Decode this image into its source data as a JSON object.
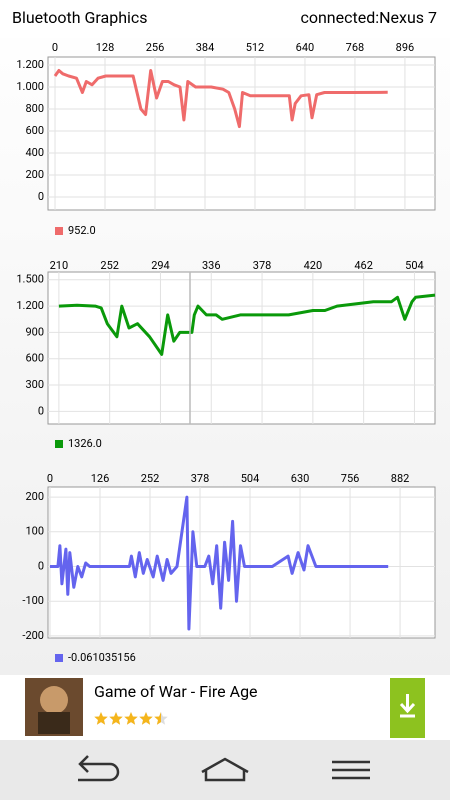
{
  "header": {
    "title": "Bluetooth Graphics",
    "status": "connected:Nexus 7"
  },
  "chart_data": [
    {
      "type": "line",
      "grid": true,
      "xlim": [
        -18,
        973
      ],
      "xticks": [
        0,
        128,
        256,
        384,
        512,
        640,
        768,
        896
      ],
      "ylim": [
        -118,
        1273
      ],
      "yticks": [
        0,
        200,
        400,
        600,
        800,
        {
          "value": 1000,
          "label": "1.000"
        },
        {
          "value": 1200,
          "label": "1.200"
        }
      ],
      "x": [
        0,
        10,
        20,
        35,
        55,
        70,
        80,
        95,
        110,
        130,
        160,
        200,
        210,
        220,
        232,
        245,
        260,
        275,
        290,
        305,
        320,
        330,
        340,
        360,
        400,
        430,
        445,
        460,
        472,
        480,
        500,
        560,
        600,
        607,
        615,
        630,
        650,
        658,
        670,
        690,
        760,
        852
      ],
      "series": [
        {
          "name": "952.0",
          "color": "#ef6b6b",
          "values": [
            1100,
            1150,
            1120,
            1100,
            1080,
            950,
            1050,
            1020,
            1080,
            1100,
            1100,
            1100,
            950,
            800,
            750,
            1150,
            900,
            1050,
            1050,
            1020,
            1000,
            700,
            1050,
            1000,
            1000,
            980,
            950,
            800,
            640,
            950,
            920,
            920,
            920,
            700,
            850,
            920,
            930,
            720,
            930,
            950,
            950,
            952
          ]
        }
      ]
    },
    {
      "type": "line",
      "grid": true,
      "xlim": [
        201,
        521
      ],
      "xticks": [
        210,
        252,
        294,
        336,
        378,
        420,
        462,
        504
      ],
      "ylim": [
        -144,
        1589
      ],
      "yticks": [
        0,
        300,
        600,
        900,
        {
          "value": 1200,
          "label": "1.200"
        },
        {
          "value": 1500,
          "label": "1.500"
        }
      ],
      "x": [
        210,
        225,
        240,
        245,
        250,
        258,
        262,
        268,
        275,
        285,
        295,
        300,
        305,
        310,
        320,
        322,
        325,
        332,
        340,
        345,
        360,
        400,
        420,
        430,
        440,
        470,
        485,
        490,
        496,
        502,
        505,
        521
      ],
      "series": [
        {
          "name": "1326.0",
          "color": "#0a990a",
          "values": [
            1200,
            1210,
            1200,
            1180,
            1000,
            850,
            1200,
            950,
            1000,
            850,
            650,
            1100,
            800,
            900,
            900,
            1100,
            1200,
            1100,
            1100,
            1050,
            1100,
            1100,
            1150,
            1150,
            1200,
            1250,
            1250,
            1300,
            1050,
            1250,
            1300,
            1326
          ]
        }
      ]
    },
    {
      "type": "line",
      "grid": true,
      "xlim": [
        -5,
        970
      ],
      "xticks": [
        0,
        126,
        252,
        378,
        504,
        630,
        756,
        882
      ],
      "ylim": [
        -206,
        229
      ],
      "yticks": [
        -200,
        -100,
        0,
        100,
        200
      ],
      "x": [
        0,
        20,
        25,
        30,
        40,
        45,
        50,
        60,
        70,
        80,
        90,
        100,
        200,
        205,
        215,
        225,
        235,
        245,
        260,
        270,
        285,
        295,
        305,
        320,
        345,
        350,
        360,
        370,
        390,
        400,
        410,
        420,
        430,
        440,
        450,
        460,
        470,
        480,
        490,
        560,
        600,
        610,
        625,
        640,
        650,
        670,
        852
      ],
      "series": [
        {
          "name": "-0.061035156",
          "color": "#6464ee",
          "values": [
            0,
            0,
            60,
            -50,
            50,
            -80,
            40,
            -60,
            0,
            -30,
            10,
            0,
            0,
            30,
            -30,
            40,
            -20,
            20,
            -30,
            30,
            -40,
            20,
            -20,
            0,
            200,
            -180,
            100,
            0,
            0,
            30,
            -50,
            60,
            -120,
            70,
            -40,
            130,
            -100,
            60,
            0,
            0,
            30,
            -20,
            40,
            -10,
            60,
            0,
            0
          ]
        }
      ]
    }
  ],
  "ad": {
    "title": "Game of War - Fire Age",
    "rating": 4.5
  }
}
